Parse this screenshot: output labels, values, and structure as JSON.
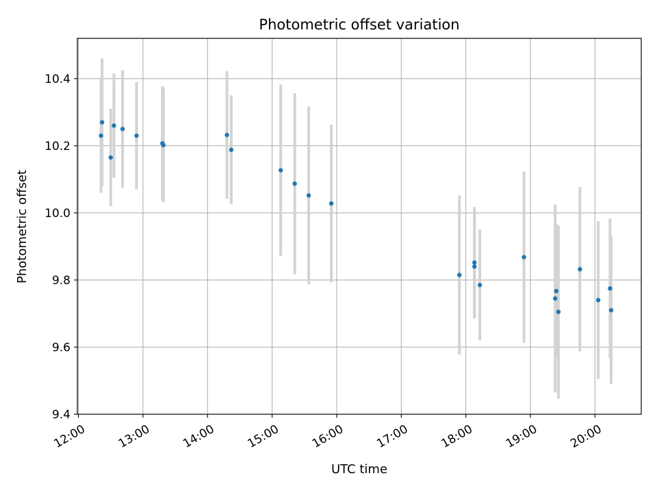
{
  "chart_data": {
    "type": "scatter",
    "title": "Photometric offset variation",
    "xlabel": "UTC time",
    "ylabel": "Photometric offset",
    "grid": true,
    "xlim": [
      "11:59",
      "20:43"
    ],
    "ylim": [
      9.4,
      10.52
    ],
    "x_ticks": [
      "12:00",
      "13:00",
      "14:00",
      "15:00",
      "16:00",
      "17:00",
      "18:00",
      "19:00",
      "20:00"
    ],
    "y_ticks": [
      9.4,
      9.6,
      9.8,
      10.0,
      10.2,
      10.4
    ],
    "colors": {
      "point": "#1f77b4",
      "errorbar": "#d3d3d3",
      "grid": "#b0b0b0"
    },
    "series": [
      {
        "points": [
          {
            "x": "12:21",
            "y": 10.23,
            "yerr": 0.17
          },
          {
            "x": "12:22",
            "y": 10.27,
            "yerr": 0.19
          },
          {
            "x": "12:30",
            "y": 10.165,
            "yerr": 0.145
          },
          {
            "x": "12:33",
            "y": 10.26,
            "yerr": 0.155
          },
          {
            "x": "12:41",
            "y": 10.25,
            "yerr": 0.175
          },
          {
            "x": "12:54",
            "y": 10.23,
            "yerr": 0.16
          },
          {
            "x": "13:18",
            "y": 10.207,
            "yerr": 0.17
          },
          {
            "x": "13:19",
            "y": 10.202,
            "yerr": 0.17
          },
          {
            "x": "14:18",
            "y": 10.232,
            "yerr": 0.19
          },
          {
            "x": "14:22",
            "y": 10.188,
            "yerr": 0.162
          },
          {
            "x": "15:08",
            "y": 10.127,
            "yerr": 0.255
          },
          {
            "x": "15:21",
            "y": 10.087,
            "yerr": 0.27
          },
          {
            "x": "15:34",
            "y": 10.052,
            "yerr": 0.265
          },
          {
            "x": "15:55",
            "y": 10.028,
            "yerr": 0.235
          },
          {
            "x": "17:54",
            "y": 9.815,
            "yerr": 0.237
          },
          {
            "x": "18:08",
            "y": 9.852,
            "yerr": 0.165
          },
          {
            "x": "18:08",
            "y": 9.84,
            "yerr": 0.155
          },
          {
            "x": "18:13",
            "y": 9.785,
            "yerr": 0.165
          },
          {
            "x": "18:54",
            "y": 9.868,
            "yerr": 0.255
          },
          {
            "x": "19:23",
            "y": 9.745,
            "yerr": 0.28
          },
          {
            "x": "19:24",
            "y": 9.767,
            "yerr": 0.2
          },
          {
            "x": "19:26",
            "y": 9.705,
            "yerr": 0.258
          },
          {
            "x": "19:46",
            "y": 9.832,
            "yerr": 0.245
          },
          {
            "x": "20:03",
            "y": 9.74,
            "yerr": 0.235
          },
          {
            "x": "20:14",
            "y": 9.775,
            "yerr": 0.208
          },
          {
            "x": "20:15",
            "y": 9.71,
            "yerr": 0.22
          }
        ]
      }
    ]
  }
}
